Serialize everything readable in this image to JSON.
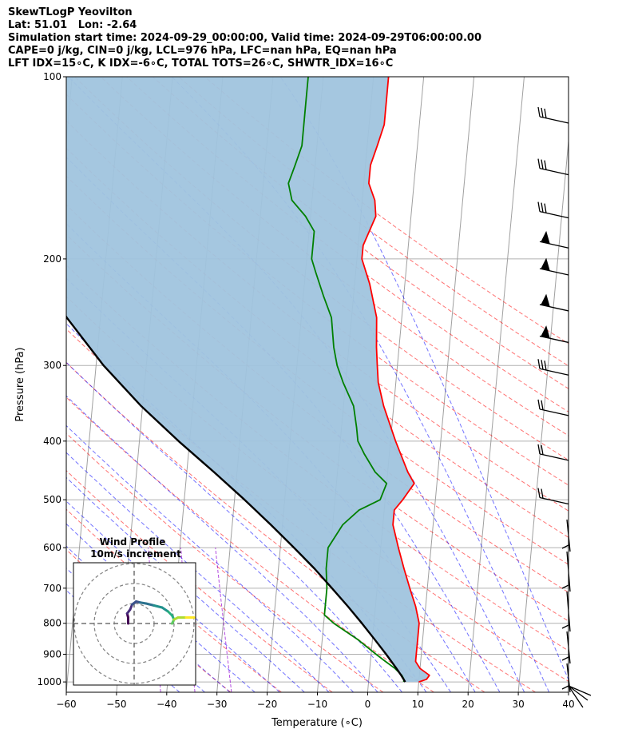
{
  "header": {
    "line1": "SkewTLogP Yeovilton",
    "line2": "Lat: 51.01   Lon: -2.64",
    "line3": "Simulation start time: 2024-09-29_00:00:00, Valid time: 2024-09-29T06:00:00.00",
    "line4": "CAPE=0 j/kg, CIN=0 j/kg, LCL=976 hPa, LFC=nan hPa, EQ=nan hPa",
    "line5": "LFT IDX=15∘C, K IDX=-6∘C, TOTAL TOTS=26∘C, SHWTR_IDX=16∘C"
  },
  "chart_data": {
    "type": "line",
    "subtype": "skew-t log-p",
    "xlabel": "Temperature (∘C)",
    "ylabel": "Pressure (hPa)",
    "xlim": [
      -60,
      40
    ],
    "ylim": [
      1040,
      100
    ],
    "yscale": "log",
    "x_ticks": [
      "−60",
      "−50",
      "−40",
      "−30",
      "−20",
      "−10",
      "0",
      "10",
      "20",
      "30",
      "40"
    ],
    "y_ticks": [
      1000,
      900,
      800,
      700,
      600,
      500,
      400,
      300,
      200,
      100
    ],
    "grid": true,
    "dry_adiabat_color": "#ff0000",
    "moist_adiabat_color": "#0000ff",
    "mixing_ratio_color": "#9400d3",
    "shading_color": "#a0c4de",
    "series": [
      {
        "color": "#ff0000",
        "points": [
          [
            1000,
            10
          ],
          [
            990,
            11.5
          ],
          [
            975,
            12
          ],
          [
            950,
            10
          ],
          [
            925,
            9
          ],
          [
            900,
            9
          ],
          [
            850,
            9
          ],
          [
            800,
            9
          ],
          [
            750,
            8
          ],
          [
            700,
            6.5
          ],
          [
            650,
            5
          ],
          [
            600,
            3.5
          ],
          [
            550,
            2
          ],
          [
            520,
            2
          ],
          [
            500,
            3.5
          ],
          [
            470,
            5.5
          ],
          [
            450,
            4
          ],
          [
            400,
            1
          ],
          [
            350,
            -2
          ],
          [
            320,
            -3.5
          ],
          [
            300,
            -4
          ],
          [
            280,
            -4.5
          ],
          [
            250,
            -5
          ],
          [
            220,
            -7
          ],
          [
            200,
            -9
          ],
          [
            190,
            -9
          ],
          [
            170,
            -7
          ],
          [
            160,
            -7.5
          ],
          [
            150,
            -9
          ],
          [
            140,
            -9
          ],
          [
            130,
            -8
          ],
          [
            120,
            -7
          ],
          [
            110,
            -7
          ],
          [
            100,
            -7
          ]
        ]
      },
      {
        "color": "#008000",
        "points": [
          [
            1000,
            7
          ],
          [
            990,
            7
          ],
          [
            975,
            6.5
          ],
          [
            950,
            5
          ],
          [
            925,
            3
          ],
          [
            900,
            1
          ],
          [
            850,
            -3
          ],
          [
            800,
            -8
          ],
          [
            775,
            -10
          ],
          [
            750,
            -10
          ],
          [
            700,
            -10
          ],
          [
            650,
            -10.5
          ],
          [
            600,
            -10.5
          ],
          [
            550,
            -8
          ],
          [
            520,
            -5
          ],
          [
            500,
            -1
          ],
          [
            470,
            0
          ],
          [
            450,
            -2.5
          ],
          [
            420,
            -5
          ],
          [
            400,
            -6.5
          ],
          [
            380,
            -7
          ],
          [
            350,
            -8
          ],
          [
            320,
            -10.5
          ],
          [
            300,
            -12
          ],
          [
            280,
            -13
          ],
          [
            250,
            -14
          ],
          [
            230,
            -16
          ],
          [
            210,
            -18
          ],
          [
            200,
            -19
          ],
          [
            190,
            -19
          ],
          [
            180,
            -19
          ],
          [
            170,
            -21
          ],
          [
            160,
            -24
          ],
          [
            150,
            -25
          ],
          [
            140,
            -24
          ],
          [
            130,
            -23
          ],
          [
            120,
            -23
          ],
          [
            110,
            -23
          ],
          [
            100,
            -23
          ]
        ]
      },
      {
        "color": "#000000",
        "points": [
          [
            1000,
            7.3
          ],
          [
            976,
            6.4
          ],
          [
            950,
            5.3
          ],
          [
            900,
            3.0
          ],
          [
            850,
            0.4
          ],
          [
            800,
            -2.4
          ],
          [
            750,
            -5.5
          ],
          [
            700,
            -9.0
          ],
          [
            650,
            -12.8
          ],
          [
            600,
            -17.3
          ],
          [
            550,
            -22.3
          ],
          [
            500,
            -28.0
          ],
          [
            450,
            -34.6
          ],
          [
            400,
            -42.2
          ],
          [
            350,
            -50.3
          ],
          [
            300,
            -58.5
          ],
          [
            250,
            -66.7
          ],
          [
            200,
            -75.0
          ],
          [
            150,
            -85.0
          ],
          [
            100,
            -100.5
          ]
        ]
      }
    ],
    "wind_barbs_title": "",
    "hodograph": {
      "title": "Wind Profile",
      "subtitle": "10m/s increment",
      "rings_ms": [
        10,
        20,
        30
      ],
      "trace_uv": [
        [
          -3,
          0
        ],
        [
          -3,
          3
        ],
        [
          -3.5,
          5
        ],
        [
          -2,
          7
        ],
        [
          -1,
          9.5
        ],
        [
          1,
          11
        ],
        [
          3,
          10.5
        ],
        [
          6,
          10
        ],
        [
          10,
          9
        ],
        [
          14,
          8
        ],
        [
          17,
          6
        ],
        [
          19,
          4
        ],
        [
          20,
          2
        ],
        [
          19,
          0
        ],
        [
          20,
          2
        ],
        [
          22,
          3
        ],
        [
          26,
          3
        ],
        [
          30,
          3
        ]
      ]
    }
  }
}
